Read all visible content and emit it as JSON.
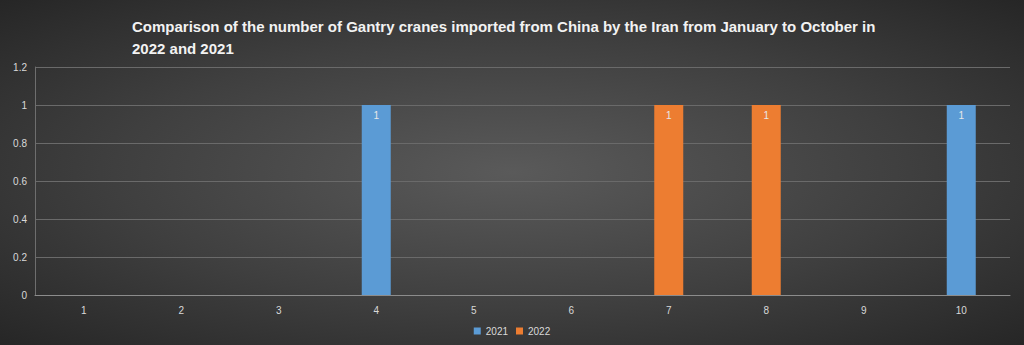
{
  "chart_data": {
    "type": "bar",
    "title": "Comparison of the number of Gantry cranes imported from China by the Iran from January to October in 2022 and 2021",
    "categories": [
      "1",
      "2",
      "3",
      "4",
      "5",
      "6",
      "7",
      "8",
      "9",
      "10"
    ],
    "series": [
      {
        "name": "2021",
        "color": "#5b9bd5",
        "values": [
          null,
          null,
          null,
          1,
          null,
          null,
          null,
          null,
          null,
          1
        ]
      },
      {
        "name": "2022",
        "color": "#ed7d31",
        "values": [
          null,
          null,
          null,
          null,
          null,
          null,
          1,
          1,
          null,
          null
        ]
      }
    ],
    "ylim": [
      0,
      1.2
    ],
    "yticks": [
      0,
      0.2,
      0.4,
      0.6,
      0.8,
      1,
      1.2
    ],
    "grid": true,
    "legend": "bottom",
    "data_labels": true
  }
}
